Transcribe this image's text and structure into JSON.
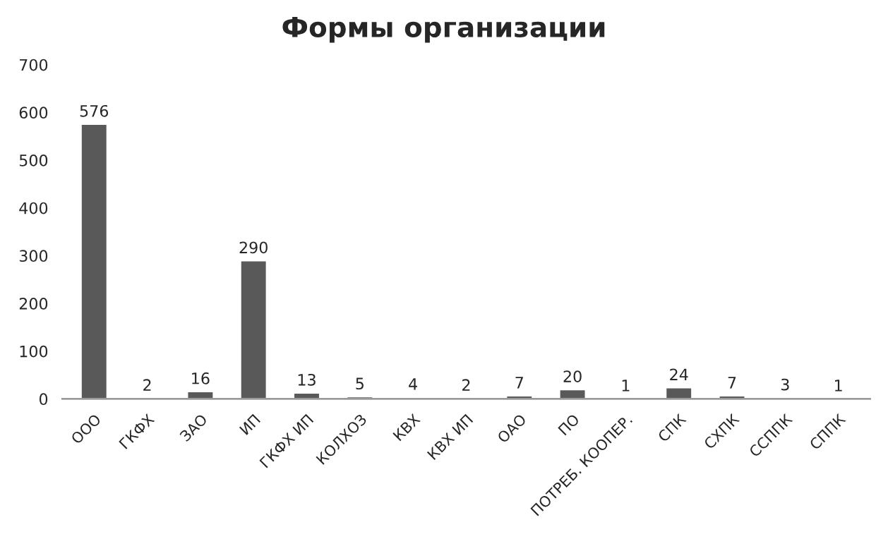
{
  "chart_data": {
    "type": "bar",
    "title": "Формы организации",
    "categories": [
      "ООО",
      "ГКФХ",
      "ЗАО",
      "ИП",
      "ГКФХ ИП",
      "КОЛХОЗ",
      "КВХ",
      "КВХ ИП",
      "ОАО",
      "ПО",
      "ПОТРЕБ. КООПЕР.",
      "СПК",
      "СХПК",
      "ССППК",
      "СППК"
    ],
    "values": [
      576,
      2,
      16,
      290,
      13,
      5,
      4,
      2,
      7,
      20,
      1,
      24,
      7,
      3,
      1
    ],
    "color": "#595959",
    "ylim": [
      0,
      700
    ],
    "yticks": [
      0,
      100,
      200,
      300,
      400,
      500,
      600,
      700
    ],
    "grid": false,
    "data_labels": true
  }
}
